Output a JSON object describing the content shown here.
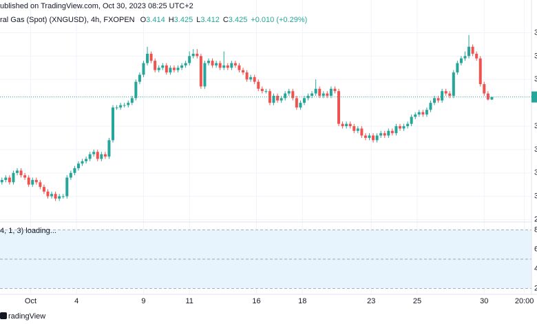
{
  "chart_data": {
    "type": "candlestick",
    "title": "ublished on TradingView.com, Oct 30, 2023 08:25 UTC+2",
    "symbol": "ral Gas (Spot) (XNGUSD), 4h, FXOPEN",
    "ohlc_legend": [
      {
        "label": "O",
        "value": "3.414"
      },
      {
        "label": "H",
        "value": "3.425"
      },
      {
        "label": "L",
        "value": "3.412"
      },
      {
        "label": "C",
        "value": "3.425"
      }
    ],
    "change": "+0.010 (+0.29%)",
    "up_color": "#26a69a",
    "down_color": "#ef5350",
    "open": [
      3.06,
      3.07,
      3.08,
      3.06,
      3.1,
      3.11,
      3.09,
      3.08,
      3.05,
      3.07,
      3.06,
      3.04,
      3.02,
      3.0,
      3.01,
      2.99,
      3.0,
      3.0,
      3.08,
      3.1,
      3.12,
      3.14,
      3.15,
      3.16,
      3.18,
      3.19,
      3.16,
      3.18,
      3.17,
      3.24,
      3.38,
      3.38,
      3.39,
      3.39,
      3.4,
      3.42,
      3.49,
      3.52,
      3.57,
      3.61,
      3.58,
      3.54,
      3.55,
      3.56,
      3.53,
      3.55,
      3.54,
      3.55,
      3.56,
      3.57,
      3.6,
      3.61,
      3.6,
      3.47,
      3.57,
      3.58,
      3.56,
      3.57,
      3.55,
      3.56,
      3.55,
      3.57,
      3.56,
      3.54,
      3.53,
      3.5,
      3.51,
      3.49,
      3.46,
      3.45,
      3.45,
      3.4,
      3.43,
      3.41,
      3.42,
      3.44,
      3.45,
      3.42,
      3.38,
      3.4,
      3.42,
      3.43,
      3.44,
      3.46,
      3.43,
      3.44,
      3.43,
      3.46,
      3.45,
      3.31,
      3.3,
      3.31,
      3.3,
      3.28,
      3.29,
      3.26,
      3.25,
      3.26,
      3.24,
      3.26,
      3.27,
      3.26,
      3.28,
      3.27,
      3.3,
      3.29,
      3.3,
      3.31,
      3.34,
      3.35,
      3.36,
      3.35,
      3.37,
      3.4,
      3.42,
      3.41,
      3.45,
      3.44,
      3.43,
      3.53,
      3.57,
      3.59,
      3.6,
      3.64,
      3.61,
      3.59,
      3.48,
      3.44,
      3.414
    ],
    "high": [
      3.08,
      3.09,
      3.09,
      3.11,
      3.12,
      3.12,
      3.1,
      3.09,
      3.08,
      3.08,
      3.07,
      3.05,
      3.03,
      3.02,
      3.02,
      3.01,
      3.01,
      3.09,
      3.11,
      3.13,
      3.15,
      3.16,
      3.17,
      3.19,
      3.2,
      3.2,
      3.19,
      3.19,
      3.25,
      3.39,
      3.39,
      3.4,
      3.4,
      3.41,
      3.43,
      3.5,
      3.53,
      3.58,
      3.64,
      3.62,
      3.59,
      3.56,
      3.57,
      3.57,
      3.56,
      3.56,
      3.56,
      3.57,
      3.58,
      3.62,
      3.63,
      3.63,
      3.61,
      3.58,
      3.59,
      3.59,
      3.58,
      3.58,
      3.62,
      3.57,
      3.58,
      3.58,
      3.57,
      3.55,
      3.54,
      3.52,
      3.52,
      3.5,
      3.47,
      3.46,
      3.46,
      3.44,
      3.44,
      3.43,
      3.45,
      3.46,
      3.46,
      3.43,
      3.41,
      3.43,
      3.44,
      3.45,
      3.5,
      3.47,
      3.45,
      3.45,
      3.47,
      3.47,
      3.46,
      3.32,
      3.32,
      3.32,
      3.31,
      3.3,
      3.3,
      3.27,
      3.27,
      3.27,
      3.27,
      3.28,
      3.28,
      3.29,
      3.29,
      3.31,
      3.31,
      3.31,
      3.32,
      3.35,
      3.36,
      3.37,
      3.37,
      3.38,
      3.41,
      3.43,
      3.43,
      3.46,
      3.46,
      3.45,
      3.54,
      3.58,
      3.6,
      3.62,
      3.69,
      3.65,
      3.62,
      3.6,
      3.49,
      3.45,
      3.425
    ],
    "low": [
      3.05,
      3.06,
      3.05,
      3.05,
      3.09,
      3.08,
      3.07,
      3.04,
      3.04,
      3.05,
      3.03,
      3.01,
      2.99,
      2.99,
      2.98,
      2.98,
      2.99,
      2.99,
      3.07,
      3.09,
      3.11,
      3.13,
      3.14,
      3.15,
      3.17,
      3.15,
      3.15,
      3.16,
      3.16,
      3.23,
      3.37,
      3.37,
      3.38,
      3.38,
      3.39,
      3.41,
      3.48,
      3.51,
      3.56,
      3.57,
      3.53,
      3.53,
      3.54,
      3.52,
      3.52,
      3.53,
      3.53,
      3.54,
      3.55,
      3.56,
      3.59,
      3.59,
      3.46,
      3.46,
      3.56,
      3.55,
      3.55,
      3.54,
      3.54,
      3.54,
      3.54,
      3.55,
      3.53,
      3.52,
      3.49,
      3.49,
      3.48,
      3.45,
      3.44,
      3.44,
      3.39,
      3.39,
      3.4,
      3.4,
      3.41,
      3.43,
      3.41,
      3.37,
      3.37,
      3.39,
      3.41,
      3.42,
      3.43,
      3.42,
      3.42,
      3.42,
      3.42,
      3.44,
      3.3,
      3.29,
      3.29,
      3.29,
      3.27,
      3.27,
      3.25,
      3.24,
      3.24,
      3.23,
      3.23,
      3.25,
      3.25,
      3.25,
      3.26,
      3.26,
      3.28,
      3.28,
      3.29,
      3.3,
      3.33,
      3.34,
      3.34,
      3.34,
      3.36,
      3.39,
      3.4,
      3.4,
      3.43,
      3.42,
      3.42,
      3.52,
      3.56,
      3.58,
      3.59,
      3.6,
      3.58,
      3.47,
      3.43,
      3.41,
      3.412
    ],
    "close": [
      3.07,
      3.08,
      3.06,
      3.1,
      3.11,
      3.09,
      3.08,
      3.05,
      3.07,
      3.06,
      3.04,
      3.02,
      3.0,
      3.01,
      2.99,
      3.0,
      3.0,
      3.08,
      3.1,
      3.12,
      3.14,
      3.15,
      3.16,
      3.18,
      3.19,
      3.16,
      3.18,
      3.17,
      3.24,
      3.38,
      3.38,
      3.39,
      3.39,
      3.4,
      3.42,
      3.49,
      3.52,
      3.57,
      3.61,
      3.58,
      3.54,
      3.55,
      3.56,
      3.53,
      3.55,
      3.54,
      3.55,
      3.56,
      3.57,
      3.6,
      3.61,
      3.6,
      3.47,
      3.57,
      3.58,
      3.56,
      3.57,
      3.55,
      3.56,
      3.55,
      3.57,
      3.56,
      3.54,
      3.53,
      3.5,
      3.51,
      3.49,
      3.46,
      3.45,
      3.45,
      3.4,
      3.43,
      3.41,
      3.42,
      3.44,
      3.45,
      3.42,
      3.38,
      3.4,
      3.42,
      3.43,
      3.44,
      3.46,
      3.43,
      3.44,
      3.43,
      3.46,
      3.45,
      3.31,
      3.3,
      3.31,
      3.3,
      3.28,
      3.29,
      3.26,
      3.25,
      3.26,
      3.24,
      3.26,
      3.27,
      3.26,
      3.28,
      3.27,
      3.3,
      3.29,
      3.3,
      3.31,
      3.34,
      3.35,
      3.36,
      3.35,
      3.37,
      3.4,
      3.42,
      3.41,
      3.45,
      3.44,
      3.43,
      3.53,
      3.57,
      3.59,
      3.6,
      3.64,
      3.61,
      3.59,
      3.48,
      3.44,
      3.414,
      3.425
    ],
    "xlim": [
      -0.5,
      138
    ],
    "xticks": [
      {
        "value": 7.5,
        "label": "Oct"
      },
      {
        "value": 19.5,
        "label": "4"
      },
      {
        "value": 37,
        "label": "9"
      },
      {
        "value": 49,
        "label": "11"
      },
      {
        "value": 66.5,
        "label": "16"
      },
      {
        "value": 78.5,
        "label": "18"
      },
      {
        "value": 96.5,
        "label": "23"
      },
      {
        "value": 108.5,
        "label": "25"
      },
      {
        "value": 126,
        "label": "30"
      },
      {
        "value": 136.5,
        "label": "20:00"
      }
    ],
    "ylim": [
      2.89,
      3.84
    ],
    "yticks": [
      {
        "value": 2.9,
        "label": "2"
      },
      {
        "value": 3.0,
        "label": "3"
      },
      {
        "value": 3.1,
        "label": "3"
      },
      {
        "value": 3.2,
        "label": "3"
      },
      {
        "value": 3.3,
        "label": "3"
      },
      {
        "value": 3.5,
        "label": "3"
      },
      {
        "value": 3.6,
        "label": "3"
      },
      {
        "value": 3.7,
        "label": "3"
      }
    ],
    "grid": true,
    "indicator": {
      "label": "4, 1, 3) loading...",
      "ylim": [
        14,
        88
      ],
      "yticks": [
        {
          "value": 80,
          "label": "8"
        },
        {
          "value": 60,
          "label": "6"
        },
        {
          "value": 40,
          "label": "4"
        },
        {
          "value": 20,
          "label": "2"
        }
      ],
      "band": [
        20,
        80
      ],
      "levels": [
        80,
        50,
        20
      ],
      "band_color": "#e8f4fd"
    },
    "footer": "radingView"
  }
}
